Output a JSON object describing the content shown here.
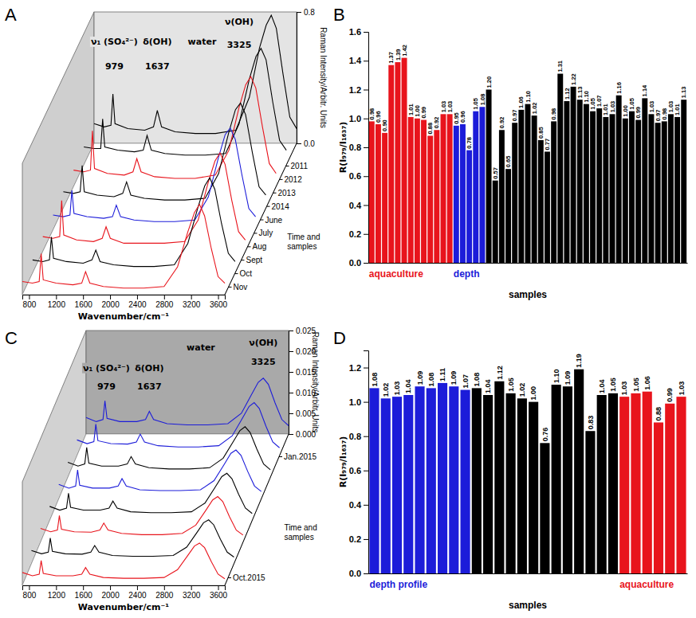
{
  "chart_data": [
    {
      "panel": "A",
      "type": "waterfall",
      "x": [
        700,
        850,
        950,
        979,
        1010,
        1200,
        1450,
        1580,
        1637,
        1700,
        1900,
        2200,
        2500,
        2800,
        3000,
        3150,
        3250,
        3325,
        3400,
        3500,
        3600,
        3700
      ],
      "series": [
        {
          "color": "#000000",
          "values": [
            0.12,
            0.1,
            0.11,
            0.3,
            0.12,
            0.09,
            0.08,
            0.1,
            0.2,
            0.1,
            0.07,
            0.06,
            0.06,
            0.08,
            0.28,
            0.58,
            0.72,
            0.78,
            0.7,
            0.42,
            0.16,
            0.09
          ]
        },
        {
          "color": "#000000",
          "values": [
            0.11,
            0.1,
            0.1,
            0.28,
            0.11,
            0.09,
            0.08,
            0.09,
            0.18,
            0.09,
            0.07,
            0.06,
            0.06,
            0.07,
            0.25,
            0.52,
            0.66,
            0.71,
            0.64,
            0.38,
            0.15,
            0.09
          ]
        },
        {
          "color": "#e8141c",
          "values": [
            0.1,
            0.09,
            0.1,
            0.34,
            0.11,
            0.08,
            0.07,
            0.09,
            0.17,
            0.09,
            0.06,
            0.05,
            0.05,
            0.07,
            0.22,
            0.48,
            0.62,
            0.67,
            0.6,
            0.36,
            0.14,
            0.08
          ]
        },
        {
          "color": "#000000",
          "values": [
            0.1,
            0.09,
            0.1,
            0.26,
            0.1,
            0.08,
            0.07,
            0.09,
            0.16,
            0.08,
            0.06,
            0.05,
            0.05,
            0.06,
            0.21,
            0.46,
            0.6,
            0.64,
            0.57,
            0.34,
            0.13,
            0.08
          ]
        },
        {
          "color": "#1c1cd9",
          "values": [
            0.09,
            0.08,
            0.09,
            0.24,
            0.1,
            0.08,
            0.07,
            0.08,
            0.15,
            0.08,
            0.06,
            0.05,
            0.05,
            0.06,
            0.2,
            0.44,
            0.58,
            0.62,
            0.55,
            0.33,
            0.13,
            0.08
          ]
        },
        {
          "color": "#e8141c",
          "values": [
            0.09,
            0.08,
            0.09,
            0.31,
            0.1,
            0.07,
            0.06,
            0.08,
            0.15,
            0.08,
            0.05,
            0.05,
            0.05,
            0.06,
            0.19,
            0.42,
            0.55,
            0.6,
            0.53,
            0.31,
            0.12,
            0.07
          ]
        },
        {
          "color": "#000000",
          "values": [
            0.08,
            0.07,
            0.08,
            0.22,
            0.09,
            0.07,
            0.06,
            0.08,
            0.14,
            0.07,
            0.05,
            0.04,
            0.04,
            0.05,
            0.18,
            0.4,
            0.53,
            0.58,
            0.51,
            0.3,
            0.12,
            0.07
          ]
        },
        {
          "color": "#e8141c",
          "values": [
            0.08,
            0.07,
            0.08,
            0.25,
            0.09,
            0.07,
            0.06,
            0.07,
            0.14,
            0.07,
            0.05,
            0.04,
            0.04,
            0.05,
            0.17,
            0.38,
            0.5,
            0.55,
            0.48,
            0.28,
            0.11,
            0.07
          ]
        }
      ],
      "xlim": [
        700,
        3700
      ],
      "xticks": [
        800,
        1200,
        1600,
        2000,
        2400,
        2800,
        3200,
        3600
      ],
      "ylim": [
        0,
        0.8
      ],
      "yticks": [
        {
          "value": 0,
          "label": "0.0"
        },
        {
          "value": 0.8,
          "label": "0.8"
        }
      ],
      "x_label": "Wavenumber/cm⁻¹",
      "y_label": "Raman Intensity/Arbitr. Units",
      "annotations": [
        {
          "text": "ν₁ (SO₄²⁻)",
          "x": 1000,
          "y": 0.62
        },
        {
          "text": "979",
          "x": 1000,
          "y": 0.47
        },
        {
          "text": "δ(OH)",
          "x": 1637,
          "y": 0.62
        },
        {
          "text": "1637",
          "x": 1637,
          "y": 0.47
        },
        {
          "text": "water",
          "x": 2300,
          "y": 0.62
        },
        {
          "text": "ν(OH)",
          "x": 2850,
          "y": 0.74
        },
        {
          "text": "3325",
          "x": 2850,
          "y": 0.6
        }
      ],
      "depth_ticks": [
        "2011",
        "2012",
        "2013",
        "2014",
        "June",
        "July",
        "Aug",
        "Sept",
        "Oct",
        "Nov"
      ],
      "depth_label": "Time and samples"
    },
    {
      "panel": "B",
      "type": "bar",
      "categories": [
        null,
        null,
        null,
        null,
        null,
        null,
        null,
        null,
        null,
        null,
        null,
        null,
        null,
        null,
        null,
        null,
        null,
        null,
        null,
        null,
        null,
        null,
        null,
        null,
        null,
        null,
        null,
        null,
        null,
        null,
        null,
        null,
        null,
        null,
        null,
        null,
        null,
        null,
        null,
        null,
        null,
        null,
        null,
        null,
        null,
        null,
        null,
        null,
        null
      ],
      "values": [
        0.98,
        0.96,
        0.9,
        1.37,
        1.39,
        1.42,
        1.01,
        1,
        0.99,
        0.88,
        0.92,
        1.03,
        1.03,
        0.95,
        0.96,
        0.78,
        1.05,
        1.08,
        1.2,
        0.57,
        0.92,
        0.65,
        0.97,
        1.06,
        1.1,
        1.02,
        0.85,
        0.77,
        0.98,
        1.31,
        1.12,
        1.22,
        1.13,
        1.1,
        1.05,
        1.07,
        1.01,
        1.03,
        1.16,
        1,
        1.05,
        0.99,
        1.14,
        1.03,
        0.97,
        0.98,
        1.03,
        1.01,
        1.13
      ],
      "value_labels": [
        "0.98",
        "0.96",
        "0.90",
        "1.37",
        "1.39",
        "1.42",
        "1.01",
        "1.00",
        "0.99",
        "0.88",
        "0.92",
        "1.03",
        "1.03",
        "0.95",
        "0.96",
        "0.78",
        "1.05",
        "1.08",
        "1.20",
        "0.57",
        "0.92",
        "0.65",
        "0.97",
        "1.06",
        "1.10",
        "1.02",
        "0.85",
        "0.77",
        "0.98",
        "1.31",
        "1.12",
        "1.22",
        "1.13",
        "1.10",
        "1.05",
        "1.07",
        "1.01",
        "1.03",
        "1.16",
        "1.00",
        "1.05",
        "0.99",
        "1.14",
        "1.03",
        "0.97",
        "0.98",
        "1.03",
        "1.01",
        "1.13"
      ],
      "colors": [
        "#e8141c",
        "#e8141c",
        "#e8141c",
        "#e8141c",
        "#e8141c",
        "#e8141c",
        "#e8141c",
        "#e8141c",
        "#e8141c",
        "#e8141c",
        "#e8141c",
        "#e8141c",
        "#e8141c",
        "#1c1cd9",
        "#1c1cd9",
        "#1c1cd9",
        "#1c1cd9",
        "#1c1cd9",
        "#000000",
        "#000000",
        "#000000",
        "#000000",
        "#000000",
        "#000000",
        "#000000",
        "#000000",
        "#000000",
        "#000000",
        "#000000",
        "#000000",
        "#000000",
        "#000000",
        "#000000",
        "#000000",
        "#000000",
        "#000000",
        "#000000",
        "#000000",
        "#000000",
        "#000000",
        "#000000",
        "#000000",
        "#000000",
        "#000000",
        "#000000",
        "#000000",
        "#000000",
        "#000000",
        "#000000"
      ],
      "data_labels": true,
      "ylim": [
        0,
        1.6
      ],
      "yticks": [
        {
          "value": 0,
          "label": "0.0"
        },
        {
          "value": 0.2,
          "label": "0.2"
        },
        {
          "value": 0.4,
          "label": "0.4"
        },
        {
          "value": 0.6,
          "label": "0.6"
        },
        {
          "value": 0.8,
          "label": "0.8"
        },
        {
          "value": 1,
          "label": "1.0"
        },
        {
          "value": 1.2,
          "label": "1.2"
        },
        {
          "value": 1.4,
          "label": "1.4"
        },
        {
          "value": 1.6,
          "label": "1.6"
        }
      ],
      "y_label": "R(I₉₇₉/I₁₆₃₇)",
      "x_label": "samples",
      "group_labels": [
        {
          "text": "aquaculture",
          "color": "#e8141c"
        },
        {
          "text": "depth",
          "color": "#1c1cd9"
        }
      ]
    },
    {
      "panel": "C",
      "type": "waterfall",
      "x": [
        700,
        850,
        950,
        979,
        1010,
        1200,
        1450,
        1580,
        1637,
        1700,
        1900,
        2200,
        2500,
        2800,
        3000,
        3150,
        3250,
        3325,
        3400,
        3500,
        3600,
        3700
      ],
      "series": [
        {
          "color": "#1c1cd9",
          "values": [
            0.004,
            0.003,
            0.0035,
            0.008,
            0.0038,
            0.003,
            0.003,
            0.0035,
            0.0055,
            0.0035,
            0.0025,
            0.0022,
            0.0022,
            0.0025,
            0.005,
            0.0095,
            0.0125,
            0.0135,
            0.012,
            0.0075,
            0.0035,
            0.002
          ]
        },
        {
          "color": "#1c1cd9",
          "values": [
            0.0038,
            0.0029,
            0.0034,
            0.0076,
            0.0036,
            0.0029,
            0.0028,
            0.0033,
            0.0052,
            0.0033,
            0.0024,
            0.0021,
            0.0021,
            0.0024,
            0.0048,
            0.009,
            0.0119,
            0.0128,
            0.0114,
            0.0071,
            0.0033,
            0.0019
          ]
        },
        {
          "color": "#000000",
          "values": [
            0.0036,
            0.0027,
            0.0032,
            0.0072,
            0.0034,
            0.0027,
            0.0027,
            0.0032,
            0.005,
            0.0032,
            0.0023,
            0.002,
            0.002,
            0.0023,
            0.0046,
            0.0086,
            0.0113,
            0.0122,
            0.0108,
            0.0068,
            0.0032,
            0.0018
          ]
        },
        {
          "color": "#1c1cd9",
          "values": [
            0.0035,
            0.0026,
            0.0031,
            0.007,
            0.0033,
            0.0026,
            0.0026,
            0.0031,
            0.0049,
            0.0031,
            0.0022,
            0.002,
            0.002,
            0.0022,
            0.0044,
            0.0083,
            0.011,
            0.0118,
            0.0105,
            0.0066,
            0.0031,
            0.0018
          ]
        },
        {
          "color": "#000000",
          "values": [
            0.0034,
            0.0025,
            0.003,
            0.0066,
            0.0032,
            0.0025,
            0.0025,
            0.003,
            0.0047,
            0.003,
            0.0021,
            0.0019,
            0.0019,
            0.0021,
            0.0042,
            0.008,
            0.0106,
            0.0114,
            0.0101,
            0.0063,
            0.003,
            0.0017
          ]
        },
        {
          "color": "#e8141c",
          "values": [
            0.0033,
            0.0025,
            0.0029,
            0.0064,
            0.0031,
            0.0025,
            0.0024,
            0.0029,
            0.0046,
            0.0029,
            0.0021,
            0.0018,
            0.0018,
            0.0021,
            0.0041,
            0.0077,
            0.0102,
            0.011,
            0.0098,
            0.0061,
            0.0029,
            0.0017
          ]
        },
        {
          "color": "#000000",
          "values": [
            0.0032,
            0.0024,
            0.0028,
            0.0062,
            0.003,
            0.0024,
            0.0023,
            0.0028,
            0.0044,
            0.0028,
            0.002,
            0.0018,
            0.0018,
            0.002,
            0.004,
            0.0075,
            0.0099,
            0.0106,
            0.0094,
            0.0059,
            0.0028,
            0.0016
          ]
        },
        {
          "color": "#e8141c",
          "values": [
            0.0031,
            0.0023,
            0.0027,
            0.006,
            0.0029,
            0.0023,
            0.0023,
            0.0027,
            0.0043,
            0.0027,
            0.0019,
            0.0017,
            0.0017,
            0.0019,
            0.0038,
            0.0072,
            0.0095,
            0.0102,
            0.0091,
            0.0057,
            0.0027,
            0.0016
          ]
        }
      ],
      "xlim": [
        700,
        3700
      ],
      "xticks": [
        800,
        1200,
        1600,
        2000,
        2400,
        2800,
        3200,
        3600
      ],
      "ylim": [
        0,
        0.025
      ],
      "yticks": [
        {
          "value": 0,
          "label": "0.000"
        },
        {
          "value": 0.005,
          "label": "0.005"
        },
        {
          "value": 0.01,
          "label": "0.010"
        },
        {
          "value": 0.015,
          "label": "0.015"
        },
        {
          "value": 0.02,
          "label": "0.020"
        },
        {
          "value": 0.025,
          "label": "0.025"
        }
      ],
      "x_label": "Wavenumber/cm⁻¹",
      "y_label": "Raman Intensity/Arbitr. Units",
      "annotations": [
        {
          "text": "ν₁ (SO₄²⁻)",
          "x": 1000,
          "y": 0.016
        },
        {
          "text": "979",
          "x": 1000,
          "y": 0.0115
        },
        {
          "text": "δ(OH)",
          "x": 1637,
          "y": 0.016
        },
        {
          "text": "1637",
          "x": 1637,
          "y": 0.0115
        },
        {
          "text": "water",
          "x": 2400,
          "y": 0.021
        },
        {
          "text": "ν(OH)",
          "x": 3325,
          "y": 0.022
        },
        {
          "text": "3325",
          "x": 3325,
          "y": 0.0175
        }
      ],
      "depth_ticks": [
        "Jan.2015",
        "Oct.2015"
      ],
      "depth_label": "Time and samples"
    },
    {
      "panel": "D",
      "type": "bar",
      "categories": [
        null,
        null,
        null,
        null,
        null,
        null,
        null,
        null,
        null,
        null,
        null,
        null,
        null,
        null,
        null,
        null,
        null,
        null,
        null,
        null,
        null,
        null,
        null,
        null,
        null,
        null,
        null,
        null
      ],
      "values": [
        1.08,
        1.02,
        1.03,
        1.04,
        1.09,
        1.08,
        1.11,
        1.09,
        1.07,
        1.08,
        1.04,
        1.12,
        1.05,
        1.02,
        1,
        0.76,
        1.1,
        1.09,
        1.19,
        0.83,
        1.04,
        1.05,
        1.03,
        1.05,
        1.06,
        0.88,
        0.99,
        1.03
      ],
      "value_labels": [
        "1.08",
        "1.02",
        "1.03",
        "1.04",
        "1.09",
        "1.08",
        "1.11",
        "1.09",
        "1.07",
        "1.08",
        "1.04",
        "1.12",
        "1.05",
        "1.02",
        "1.00",
        "0.76",
        "1.10",
        "1.09",
        "1.19",
        "0.83",
        "1.04",
        "1.05",
        "1.03",
        "1.05",
        "1.06",
        "0.88",
        "0.99",
        "1.03"
      ],
      "colors": [
        "#1c1cd9",
        "#1c1cd9",
        "#1c1cd9",
        "#1c1cd9",
        "#1c1cd9",
        "#1c1cd9",
        "#1c1cd9",
        "#1c1cd9",
        "#1c1cd9",
        "#000000",
        "#000000",
        "#000000",
        "#000000",
        "#000000",
        "#000000",
        "#000000",
        "#000000",
        "#000000",
        "#000000",
        "#000000",
        "#000000",
        "#000000",
        "#e8141c",
        "#e8141c",
        "#e8141c",
        "#e8141c",
        "#e8141c",
        "#e8141c"
      ],
      "data_labels": true,
      "ylim": [
        0,
        1.3
      ],
      "yticks": [
        {
          "value": 0,
          "label": "0.0"
        },
        {
          "value": 0.2,
          "label": "0.2"
        },
        {
          "value": 0.4,
          "label": "0.4"
        },
        {
          "value": 0.6,
          "label": "0.6"
        },
        {
          "value": 0.8,
          "label": "0.8"
        },
        {
          "value": 1,
          "label": "1.0"
        },
        {
          "value": 1.2,
          "label": "1.2"
        }
      ],
      "y_label": "R(I₉₇₉/I₁₆₃₇)",
      "x_label": "samples",
      "group_labels": [
        {
          "text": "depth profile",
          "color": "#1c1cd9"
        },
        {
          "text": "aquaculture",
          "color": "#e8141c"
        }
      ]
    }
  ]
}
